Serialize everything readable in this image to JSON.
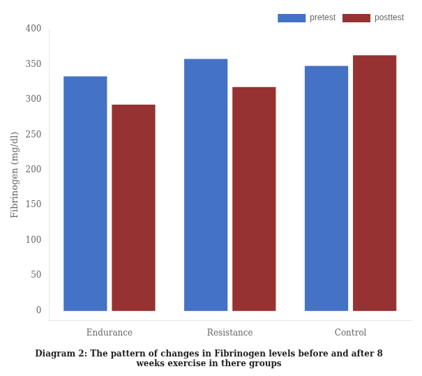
{
  "chart_data": {
    "type": "bar",
    "title": [
      "Diagram 2: The pattern of changes in Fibrinogen levels before and after 8",
      "weeks exercise in there groups"
    ],
    "categories": [
      "Endurance",
      "Resistance",
      "Control"
    ],
    "series": [
      {
        "name": "pretest",
        "color": "#4472C4",
        "values": [
          333,
          358,
          348
        ]
      },
      {
        "name": "posttest",
        "color": "#963232",
        "values": [
          293,
          318,
          363
        ]
      }
    ],
    "ylabel": "Fibrinogen (mg/dl)",
    "ylim": [
      -14,
      400
    ],
    "yticks": [
      0,
      50,
      100,
      150,
      200,
      250,
      300,
      350,
      400
    ],
    "grid": false,
    "legend": "upper right"
  }
}
